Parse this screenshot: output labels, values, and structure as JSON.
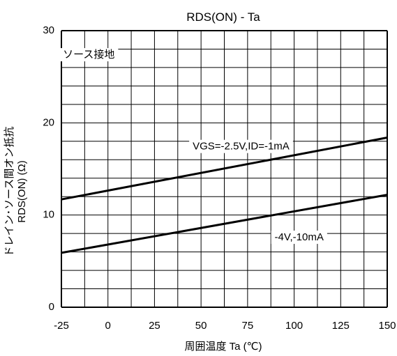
{
  "chart_data": {
    "type": "line",
    "title": "RDS(ON) - Ta",
    "xlabel": "周囲温度  Ta (℃)",
    "ylabel_line1": "ドレイン･ソース間オン抵抗",
    "ylabel_line2": "RDS(ON) (Ω)",
    "xlim": [
      -25,
      150
    ],
    "ylim": [
      0,
      30
    ],
    "x_ticks": [
      -25,
      0,
      25,
      50,
      75,
      100,
      125,
      150
    ],
    "y_ticks": [
      0,
      10,
      20,
      30
    ],
    "x_tick_labels": [
      "-25",
      "0",
      "25",
      "50",
      "75",
      "100",
      "125",
      "150"
    ],
    "y_tick_labels": [
      "0",
      "10",
      "20",
      "30"
    ],
    "grid": true,
    "condition_label": "ソース接地",
    "series": [
      {
        "name": "VGS=-2.5V,ID=-1mA",
        "x": [
          -25,
          150
        ],
        "y": [
          11.7,
          18.4
        ]
      },
      {
        "name": "-4V,-10mA",
        "x": [
          -25,
          150
        ],
        "y": [
          5.9,
          12.2
        ]
      }
    ],
    "colors": {
      "line": "#000000",
      "grid": "#000000",
      "background": "#ffffff"
    }
  }
}
